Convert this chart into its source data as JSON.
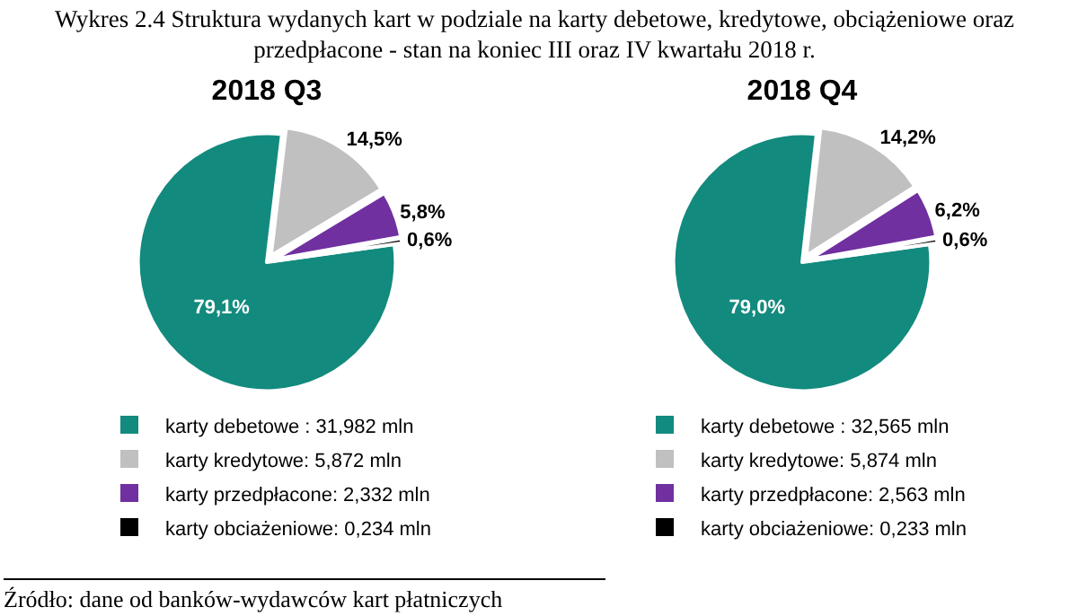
{
  "chart_data": [
    {
      "type": "pie",
      "title": "2018 Q3",
      "annotations": [
        "Wykres 2.4 Struktura wydanych kart w podziale na karty debetowe, kredytowe, obciążeniowe oraz przedpłacone - stan na koniec III oraz IV kwartału 2018 r.",
        "Źródło: dane od banków-wydawców kart płatniczych"
      ],
      "categories": [
        "karty debetowe : 31,982 mln",
        "karty kredytowe: 5,872 mln",
        "karty przedpłacone: 2,332 mln",
        "karty obciażeniowe: 0,234 mln"
      ],
      "values": [
        79.1,
        14.5,
        5.8,
        0.6
      ],
      "value_labels": [
        "79,1%",
        "14,5%",
        "5,8%",
        "0,6%"
      ],
      "colors": [
        "#138a7e",
        "#c0c0c0",
        "#7030a0",
        "#000000"
      ],
      "legend": "bottom"
    },
    {
      "type": "pie",
      "title": "2018 Q4",
      "categories": [
        "karty debetowe : 32,565 mln",
        "karty kredytowe: 5,874 mln",
        "karty przedpłacone: 2,563 mln",
        "karty obciażeniowe: 0,233 mln"
      ],
      "values": [
        79.0,
        14.2,
        6.2,
        0.6
      ],
      "value_labels": [
        "79,0%",
        "14,2%",
        "6,2%",
        "0,6%"
      ],
      "colors": [
        "#138a7e",
        "#c0c0c0",
        "#7030a0",
        "#000000"
      ],
      "legend": "bottom"
    }
  ]
}
